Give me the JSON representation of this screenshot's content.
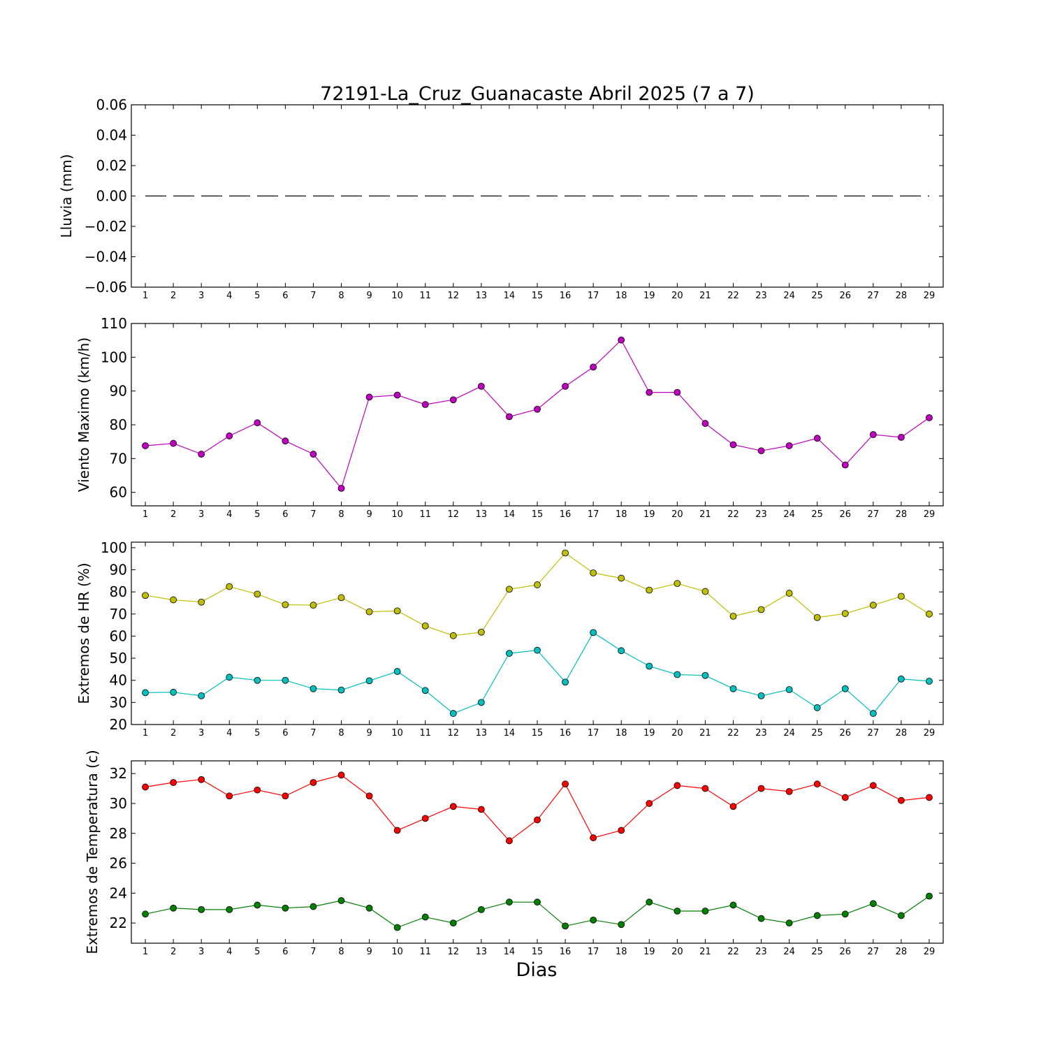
{
  "figure": {
    "title": "72191-La_Cruz_Guanacaste Abril 2025  (7 a 7)",
    "xlabel": "Dias"
  },
  "chart_data": [
    {
      "type": "line",
      "ylabel": "Lluvia (mm)",
      "ylim": [
        -0.06,
        0.06
      ],
      "yticks": [
        -0.06,
        -0.04,
        -0.02,
        0.0,
        0.02,
        0.04,
        0.06
      ],
      "ytick_labels": [
        "−0.06",
        "−0.04",
        "−0.02",
        "0.00",
        "0.02",
        "0.04",
        "0.06"
      ],
      "x": [
        1,
        2,
        3,
        4,
        5,
        6,
        7,
        8,
        9,
        10,
        11,
        12,
        13,
        14,
        15,
        16,
        17,
        18,
        19,
        20,
        21,
        22,
        23,
        24,
        25,
        26,
        27,
        28,
        29
      ],
      "series": [
        {
          "color": "#000000",
          "style": "dashed",
          "markers": false,
          "values": [
            0,
            0,
            0,
            0,
            0,
            0,
            0,
            0,
            0,
            0,
            0,
            0,
            0,
            0,
            0,
            0,
            0,
            0,
            0,
            0,
            0,
            0,
            0,
            0,
            0,
            0,
            0,
            0,
            0
          ]
        }
      ]
    },
    {
      "type": "line",
      "ylabel": "Viento Maximo (km/h)",
      "ylim": [
        56,
        110
      ],
      "yticks": [
        60,
        70,
        80,
        90,
        100,
        110
      ],
      "ytick_labels": [
        "60",
        "70",
        "80",
        "90",
        "100",
        "110"
      ],
      "x": [
        1,
        2,
        3,
        4,
        5,
        6,
        7,
        8,
        9,
        10,
        11,
        12,
        13,
        14,
        15,
        16,
        17,
        18,
        19,
        20,
        21,
        22,
        23,
        24,
        25,
        26,
        27,
        28,
        29
      ],
      "series": [
        {
          "color": "#bf00bf",
          "markers": true,
          "values": [
            73.8,
            74.5,
            71.3,
            76.7,
            80.6,
            75.2,
            71.3,
            61.2,
            88.2,
            88.8,
            86.0,
            87.4,
            91.4,
            82.4,
            84.6,
            91.4,
            97.1,
            105.1,
            89.6,
            89.6,
            80.4,
            74.1,
            72.3,
            73.8,
            76.0,
            68.1,
            77.1,
            76.3,
            82.1
          ]
        }
      ]
    },
    {
      "type": "line",
      "ylabel": "Extremos de HR (%)",
      "ylim": [
        20,
        102.5
      ],
      "yticks": [
        20,
        30,
        40,
        50,
        60,
        70,
        80,
        90,
        100
      ],
      "ytick_labels": [
        "20",
        "30",
        "40",
        "50",
        "60",
        "70",
        "80",
        "90",
        "100"
      ],
      "x": [
        1,
        2,
        3,
        4,
        5,
        6,
        7,
        8,
        9,
        10,
        11,
        12,
        13,
        14,
        15,
        16,
        17,
        18,
        19,
        20,
        21,
        22,
        23,
        24,
        25,
        26,
        27,
        28,
        29
      ],
      "series": [
        {
          "color": "#bfbf00",
          "markers": true,
          "values": [
            78.4,
            76.4,
            75.4,
            82.4,
            79.0,
            74.2,
            74.0,
            77.4,
            71.0,
            71.4,
            64.6,
            60.2,
            61.8,
            81.2,
            83.2,
            97.6,
            88.6,
            86.2,
            80.8,
            83.8,
            80.2,
            69.0,
            72.0,
            79.4,
            68.4,
            70.2,
            74.0,
            78.0,
            70.0
          ]
        },
        {
          "color": "#00bfbf",
          "markers": true,
          "values": [
            34.4,
            34.6,
            33.0,
            41.4,
            40.0,
            40.0,
            36.2,
            35.6,
            39.8,
            44.0,
            35.4,
            25.0,
            30.0,
            52.2,
            53.6,
            39.2,
            61.6,
            53.4,
            46.4,
            42.6,
            42.2,
            36.2,
            33.0,
            35.8,
            27.6,
            36.2,
            25.0,
            40.6,
            39.6
          ]
        }
      ]
    },
    {
      "type": "line",
      "ylabel": "Extremos de Temperatura (c)",
      "ylim": [
        20.65,
        32.85
      ],
      "yticks": [
        22,
        24,
        26,
        28,
        30,
        32
      ],
      "ytick_labels": [
        "22",
        "24",
        "26",
        "28",
        "30",
        "32"
      ],
      "x": [
        1,
        2,
        3,
        4,
        5,
        6,
        7,
        8,
        9,
        10,
        11,
        12,
        13,
        14,
        15,
        16,
        17,
        18,
        19,
        20,
        21,
        22,
        23,
        24,
        25,
        26,
        27,
        28,
        29
      ],
      "series": [
        {
          "color": "#ff0000",
          "markers": true,
          "values": [
            31.1,
            31.4,
            31.6,
            30.5,
            30.9,
            30.5,
            31.4,
            31.9,
            30.5,
            28.2,
            29.0,
            29.8,
            29.6,
            27.5,
            28.9,
            31.3,
            27.7,
            28.2,
            30.0,
            31.2,
            31.0,
            29.8,
            31.0,
            30.8,
            31.3,
            30.4,
            31.2,
            30.2,
            30.4
          ]
        },
        {
          "color": "#008000",
          "markers": true,
          "values": [
            22.6,
            23.0,
            22.9,
            22.9,
            23.2,
            23.0,
            23.1,
            23.5,
            23.0,
            21.7,
            22.4,
            22.0,
            22.9,
            23.4,
            23.4,
            21.8,
            22.2,
            21.9,
            23.4,
            22.8,
            22.8,
            23.2,
            22.3,
            22.0,
            22.5,
            22.6,
            23.3,
            22.5,
            23.8
          ]
        }
      ]
    }
  ]
}
